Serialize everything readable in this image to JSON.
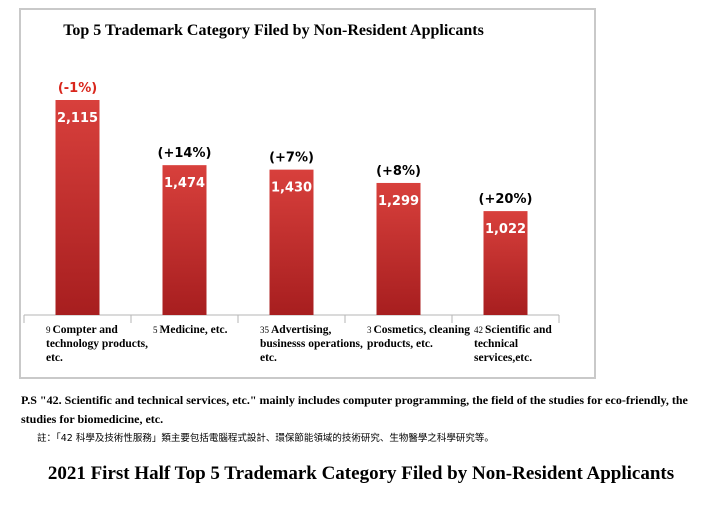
{
  "chart_data": {
    "type": "bar",
    "title": "Top 5 Trademark Category Filed by Non-Resident Applicants",
    "categories": [
      {
        "code": "9",
        "label": "Compter and technology products, etc."
      },
      {
        "code": "5",
        "label": "Medicine, etc."
      },
      {
        "code": "35",
        "label": "Advertising, businesss operations, etc."
      },
      {
        "code": "3",
        "label": "Cosmetics, cleaning products, etc."
      },
      {
        "code": "42",
        "label": "Scientific and technical services,etc."
      }
    ],
    "values": [
      2115,
      1474,
      1430,
      1299,
      1022
    ],
    "value_labels": [
      "2,115",
      "1,474",
      "1,430",
      "1,299",
      "1,022"
    ],
    "change_labels": [
      "(-1%)",
      "(+14%)",
      "(+7%)",
      "(+8%)",
      "(+20%)"
    ],
    "change_colors": [
      "#d9261c",
      "#000000",
      "#000000",
      "#000000",
      "#000000"
    ],
    "bar_color": "#c8302e",
    "ylim": [
      0,
      2115
    ],
    "grid": false,
    "legend": "none"
  },
  "notes": {
    "english": "P.S \"42. Scientific and technical services, etc.\" mainly includes computer programming, the field of the studies for eco-friendly, the studies for biomedicine, etc.",
    "chinese": "註：「42 科學及技術性服務」類主要包括電腦程式設計、環保節能領域的技術研究、生物醫學之科學研究等。"
  },
  "caption": "2021 First Half Top 5 Trademark Category Filed by Non-Resident Applicants"
}
